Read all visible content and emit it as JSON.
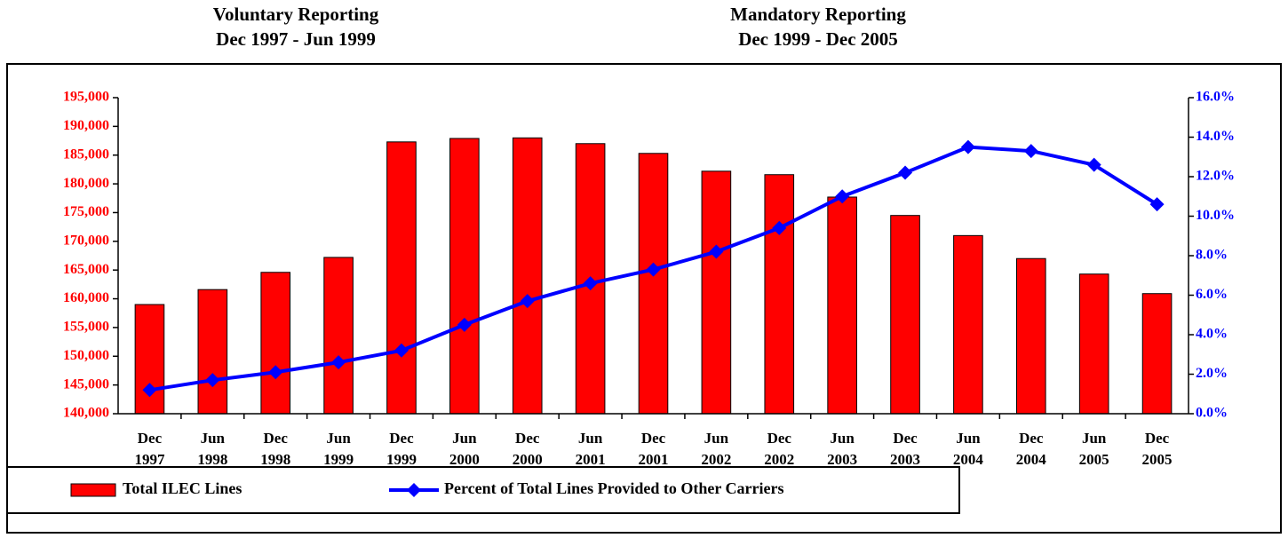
{
  "chart_data": {
    "type": "bar_line",
    "annotations": [
      "Voluntary Reporting",
      "Dec 1997 - Jun 1999",
      "Mandatory Reporting",
      "Dec 1999 - Dec 2005"
    ],
    "categories": [
      "Dec 1997",
      "Jun 1998",
      "Dec 1998",
      "Jun 1999",
      "Dec 1999",
      "Jun 2000",
      "Dec 2000",
      "Jun 2001",
      "Dec 2001",
      "Jun 2002",
      "Dec 2002",
      "Jun 2003",
      "Dec 2003",
      "Jun 2004",
      "Dec 2004",
      "Jun 2005",
      "Dec 2005"
    ],
    "series": [
      {
        "name": "Total ILEC Lines",
        "color": "#ff0000",
        "type": "bar",
        "values": [
          159000,
          161600,
          164600,
          167200,
          187300,
          187900,
          188000,
          187000,
          185300,
          182200,
          181600,
          177700,
          174500,
          171000,
          167000,
          164300,
          160900
        ]
      },
      {
        "name": "Percent of Total Lines Provided to Other Carriers",
        "color": "#0000ff",
        "type": "line",
        "axis": "y2",
        "values": [
          1.2,
          1.7,
          2.1,
          2.6,
          3.2,
          4.5,
          5.7,
          6.6,
          7.3,
          8.2,
          9.4,
          11.0,
          12.2,
          13.5,
          13.3,
          12.6,
          10.6
        ]
      }
    ],
    "ylim": [
      140000,
      195000
    ],
    "yticks": [
      {
        "value": 140000,
        "label": "140,000"
      },
      {
        "value": 145000,
        "label": "145,000"
      },
      {
        "value": 150000,
        "label": "150,000"
      },
      {
        "value": 155000,
        "label": "155,000"
      },
      {
        "value": 160000,
        "label": "160,000"
      },
      {
        "value": 165000,
        "label": "165,000"
      },
      {
        "value": 170000,
        "label": "170,000"
      },
      {
        "value": 175000,
        "label": "175,000"
      },
      {
        "value": 180000,
        "label": "180,000"
      },
      {
        "value": 185000,
        "label": "185,000"
      },
      {
        "value": 190000,
        "label": "190,000"
      },
      {
        "value": 195000,
        "label": "195,000"
      }
    ],
    "y2lim": [
      0,
      16
    ],
    "y2ticks": [
      {
        "value": 0,
        "label": "0.0%"
      },
      {
        "value": 2,
        "label": "2.0%"
      },
      {
        "value": 4,
        "label": "4.0%"
      },
      {
        "value": 6,
        "label": "6.0%"
      },
      {
        "value": 8,
        "label": "8.0%"
      },
      {
        "value": 10,
        "label": "10.0%"
      },
      {
        "value": 12,
        "label": "12.0%"
      },
      {
        "value": 14,
        "label": "14.0%"
      },
      {
        "value": 16,
        "label": "16.0%"
      }
    ],
    "ytick_color": "#ff0000",
    "y2tick_color": "#0000ff",
    "grid": false
  }
}
